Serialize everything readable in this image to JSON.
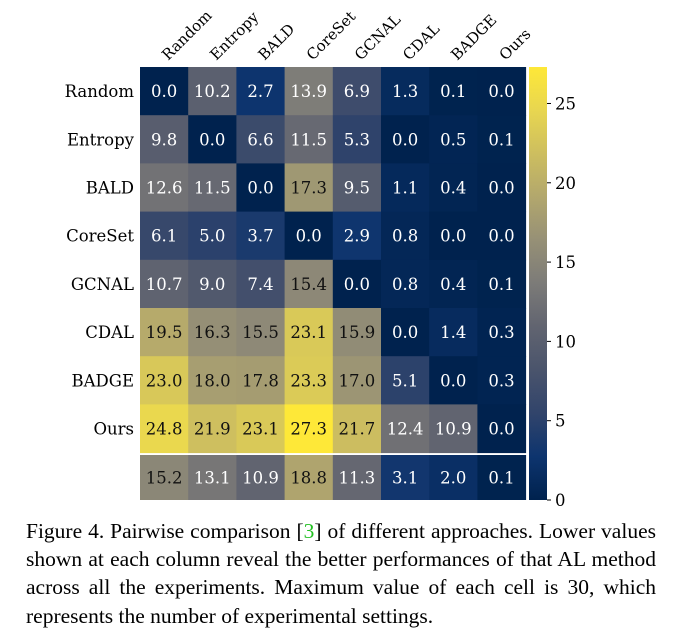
{
  "chart_data": {
    "type": "heatmap",
    "title": "",
    "xlabel": "",
    "ylabel": "",
    "x_tick_labels": [
      "Random",
      "Entropy",
      "BALD",
      "CoreSet",
      "GCNAL",
      "CDAL",
      "BADGE",
      "Ours"
    ],
    "y_tick_labels": [
      "Random",
      "Entropy",
      "BALD",
      "CoreSet",
      "GCNAL",
      "CDAL",
      "BADGE",
      "Ours"
    ],
    "matrix": [
      [
        0.0,
        10.2,
        2.7,
        13.9,
        6.9,
        1.3,
        0.1,
        0.0
      ],
      [
        9.8,
        0.0,
        6.6,
        11.5,
        5.3,
        0.0,
        0.5,
        0.1
      ],
      [
        12.6,
        11.5,
        0.0,
        17.3,
        9.5,
        1.1,
        0.4,
        0.0
      ],
      [
        6.1,
        5.0,
        3.7,
        0.0,
        2.9,
        0.8,
        0.0,
        0.0
      ],
      [
        10.7,
        9.0,
        7.4,
        15.4,
        0.0,
        0.8,
        0.4,
        0.1
      ],
      [
        19.5,
        16.3,
        15.5,
        23.1,
        15.9,
        0.0,
        1.4,
        0.3
      ],
      [
        23.0,
        18.0,
        17.8,
        23.3,
        17.0,
        5.1,
        0.0,
        0.3
      ],
      [
        24.8,
        21.9,
        23.1,
        27.3,
        21.7,
        12.4,
        10.9,
        0.0
      ]
    ],
    "column_means": [
      15.2,
      13.1,
      10.9,
      18.8,
      11.3,
      3.1,
      2.0,
      0.1
    ],
    "value_format": "%.1f",
    "colormap": "cividis",
    "colorbar": {
      "range": [
        0,
        27.3
      ],
      "ticks": [
        0,
        5,
        10,
        15,
        20,
        25
      ],
      "tick_labels": [
        "0",
        "5",
        "10",
        "15",
        "20",
        "25"
      ],
      "location": "right"
    }
  },
  "caption": {
    "prefix": "Figure 4. Pairwise comparison [",
    "ref": "3",
    "suffix": "] of different approaches. Lower values shown at each column reveal the better performances of that AL method across all the experiments. Maximum value of each cell is 30, which represents the number of experimental settings."
  }
}
